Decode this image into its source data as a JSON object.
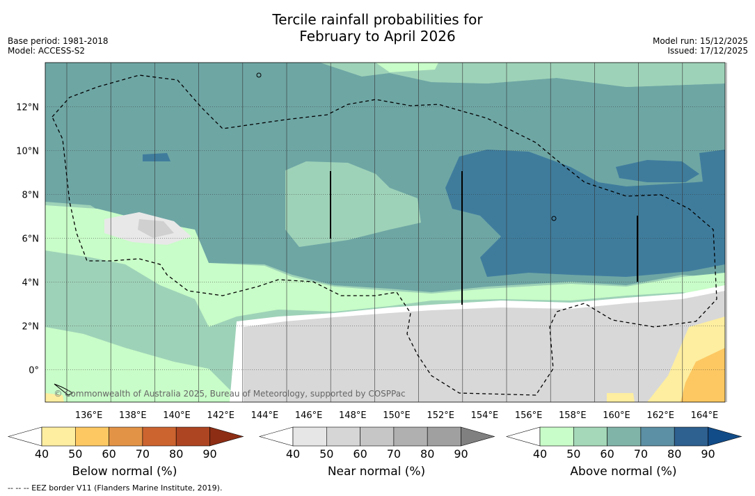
{
  "title_line1": "Tercile rainfall probabilities for",
  "title_line2": "February to April 2026",
  "base_period": "Base period: 1981-2018",
  "model": "Model: ACCESS-S2",
  "model_run": "Model run: 15/12/2025",
  "issued": "Issued: 17/12/2025",
  "copyright": "© Commonwealth of Australia 2025, Bureau of Meteorology, supported by COSPPac",
  "footnote": "--  --  -- EEZ border V11 (Flanders Marine Institute, 2019).",
  "lat_labels": [
    "12°N",
    "10°N",
    "8°N",
    "6°N",
    "4°N",
    "2°N",
    "0°"
  ],
  "lat_values": [
    12,
    10,
    8,
    6,
    4,
    2,
    0
  ],
  "lon_labels": [
    "136°E",
    "138°E",
    "140°E",
    "142°E",
    "144°E",
    "146°E",
    "148°E",
    "150°E",
    "152°E",
    "154°E",
    "156°E",
    "158°E",
    "160°E",
    "162°E",
    "164°E"
  ],
  "lon_values": [
    136,
    138,
    140,
    142,
    144,
    146,
    148,
    150,
    152,
    154,
    156,
    158,
    160,
    162,
    164
  ],
  "colorbars": [
    {
      "title": "Below normal (%)",
      "ticks": [
        "40",
        "50",
        "60",
        "70",
        "80",
        "90"
      ],
      "colors": [
        "#ffffff",
        "#fdeea0",
        "#fdc862",
        "#e39346",
        "#cc6430",
        "#ad4522",
        "#8c2d14"
      ]
    },
    {
      "title": "Near normal (%)",
      "ticks": [
        "40",
        "50",
        "60",
        "70",
        "80",
        "90"
      ],
      "colors": [
        "#ffffff",
        "#e6e6e6",
        "#d6d6d6",
        "#c6c6c6",
        "#b0b0b0",
        "#a0a0a0",
        "#808080"
      ]
    },
    {
      "title": "Above normal (%)",
      "ticks": [
        "40",
        "50",
        "60",
        "70",
        "80",
        "90"
      ],
      "colors": [
        "#ffffff",
        "#c8fcc8",
        "#a4d8b8",
        "#80b4a8",
        "#5c90a4",
        "#2e6090",
        "#124c88"
      ]
    }
  ]
}
